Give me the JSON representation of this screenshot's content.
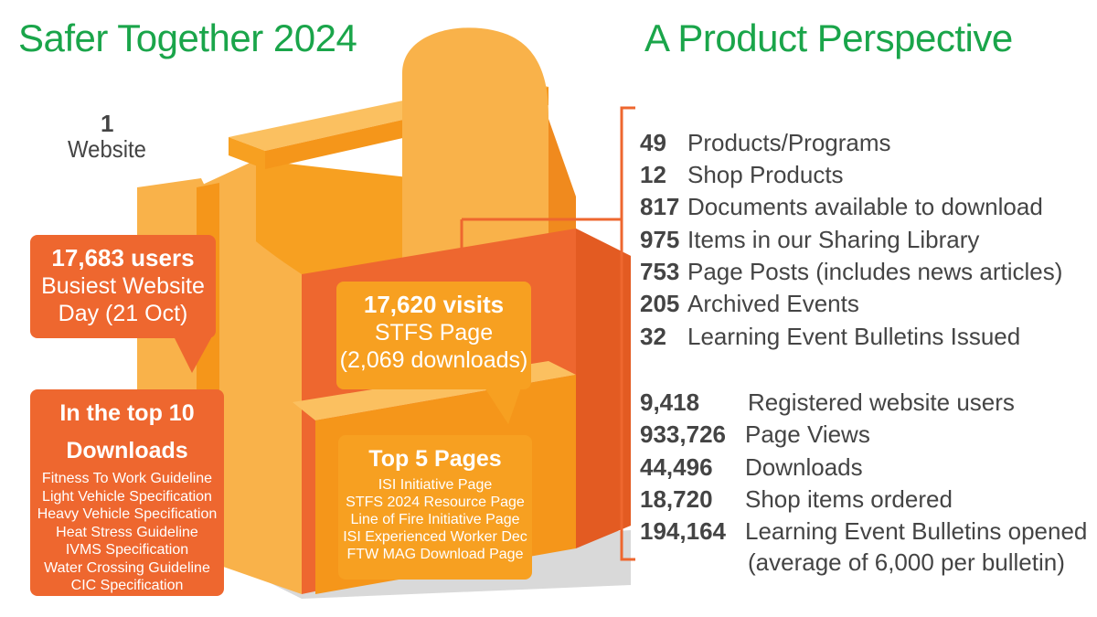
{
  "title": "Safer Together 2024",
  "subtitle": "A Product Perspective",
  "website": {
    "count": "1",
    "label": "Website"
  },
  "callouts": {
    "users": {
      "value": "17,683 users",
      "line1": "Busiest Website",
      "line2": "Day (21 Oct)"
    },
    "visits": {
      "value": "17,620 visits",
      "line1": "STFS Page",
      "line2": "(2,069 downloads)"
    },
    "top_downloads": {
      "heading_line1": "In the top 10",
      "heading_line2": "Downloads",
      "items": [
        "Fitness To Work Guideline",
        "Light Vehicle Specification",
        "Heavy Vehicle Specification",
        "Heat Stress Guideline",
        "IVMS Specification",
        "Water Crossing Guideline",
        "CIC Specification"
      ]
    },
    "top_pages": {
      "heading": "Top 5 Pages",
      "items": [
        "ISI Initiative Page",
        "STFS 2024 Resource Page",
        "Line of Fire Initiative Page",
        "ISI Experienced Worker Dec",
        "FTW MAG Download Page"
      ]
    }
  },
  "stats_group1": [
    {
      "num": "49",
      "label": "Products/Programs"
    },
    {
      "num": "12",
      "label": "Shop Products"
    },
    {
      "num": "817",
      "label": "Documents available to download"
    },
    {
      "num": "975",
      "label": "Items in our Sharing Library"
    },
    {
      "num": "753",
      "label": "Page Posts (includes news articles)"
    },
    {
      "num": "205",
      "label": "Archived Events"
    },
    {
      "num": "32",
      "label": "Learning Event Bulletins Issued"
    }
  ],
  "stats_group2": [
    {
      "num": "9,418",
      "label": "Registered website users"
    },
    {
      "num": "933,726",
      "label": "Page Views"
    },
    {
      "num": "44,496",
      "label": "Downloads"
    },
    {
      "num": "18,720",
      "label": "Shop items ordered"
    },
    {
      "num": "194,164",
      "label": "Learning Event Bulletins opened"
    }
  ],
  "stats_note": "(average of 6,000 per bulletin)",
  "colors": {
    "green": "#1aa54a",
    "orange_dark": "#ee672f",
    "orange_light": "#f7a021",
    "text": "#444444"
  }
}
